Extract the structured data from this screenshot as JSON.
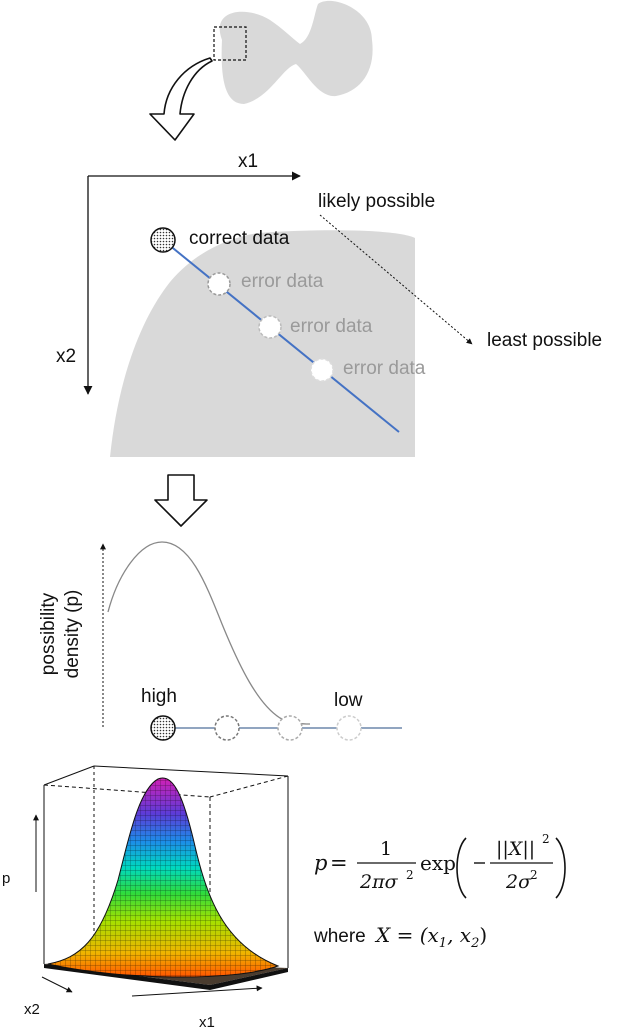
{
  "labels": {
    "x1_top": "x1",
    "x2_left": "x2",
    "likely_possible": "likely possible",
    "least_possible": "least possible",
    "correct_data": "correct data",
    "error_data_1": "error data",
    "error_data_2": "error data",
    "error_data_3": "error data",
    "y_axis_line1": "possibility",
    "y_axis_line2": "density (p)",
    "high": "high",
    "low": "low",
    "p_axis": "p",
    "x2_bottom": "x2",
    "x1_bottom": "x1"
  },
  "formula": {
    "lhs": "p =",
    "numerator": "1",
    "denominator": "2πσ",
    "denominator_exp": "2",
    "func": "exp",
    "inner_num": "||X||",
    "inner_num_exp": "2",
    "inner_den": "2σ",
    "inner_den_exp": "2",
    "where_word": "where",
    "where_expr": "X = (x",
    "sub1": "1",
    "comma": ", x",
    "sub2": "2",
    "close": ")"
  },
  "colors": {
    "blob": "#d9d9d9",
    "line": "#4472c4",
    "axis": "#111111",
    "error_text": "#9a9a9a"
  }
}
